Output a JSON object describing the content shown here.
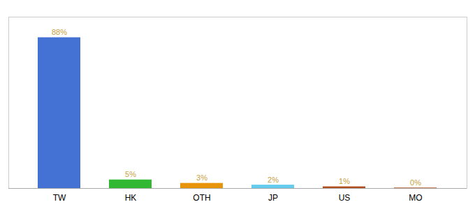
{
  "chart_data": {
    "type": "bar",
    "categories": [
      "TW",
      "HK",
      "OTH",
      "JP",
      "US",
      "MO"
    ],
    "values": [
      88,
      5,
      3,
      2,
      1,
      0.3
    ],
    "value_labels": [
      "88%",
      "5%",
      "3%",
      "2%",
      "1%",
      "0%"
    ],
    "colors": [
      "#4472d4",
      "#33b833",
      "#e8940a",
      "#66ccee",
      "#b05020",
      "#b05020"
    ],
    "ylim": [
      0,
      100
    ],
    "data_labels": true,
    "tick_labels": "x",
    "grid": false
  }
}
